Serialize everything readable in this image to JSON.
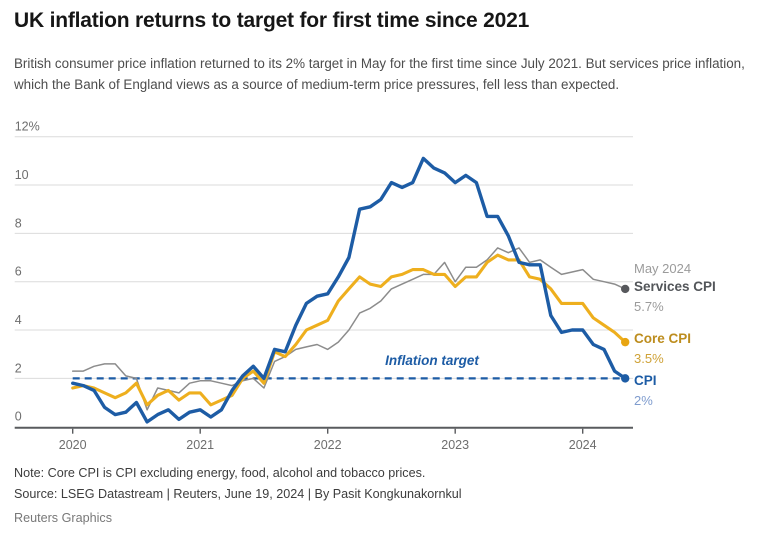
{
  "header": {
    "title": "UK inflation returns to target for first time since 2021",
    "subtitle": "British consumer price inflation returned to its 2% target in May for the first time since July 2021. But services price inflation, which the Bank of England views as a source of medium-term price pressures, fell less than expected."
  },
  "chart_data": {
    "type": "line",
    "x_unit": "month",
    "x_domain": [
      "Jan 2020",
      "May 2024"
    ],
    "ylim": [
      0,
      12
    ],
    "grid": true,
    "y_axis": {
      "ticks": [
        {
          "v": 0,
          "label": "0"
        },
        {
          "v": 2,
          "label": "2"
        },
        {
          "v": 4,
          "label": "4"
        },
        {
          "v": 6,
          "label": "6"
        },
        {
          "v": 8,
          "label": "8"
        },
        {
          "v": 10,
          "label": "10"
        },
        {
          "v": 12,
          "label": "12%"
        }
      ]
    },
    "x_axis": {
      "ticks": [
        {
          "m": 0,
          "label": "2020"
        },
        {
          "m": 12,
          "label": "2021"
        },
        {
          "m": 24,
          "label": "2022"
        },
        {
          "m": 36,
          "label": "2023"
        },
        {
          "m": 48,
          "label": "2024"
        }
      ]
    },
    "target_line": {
      "label": "Inflation target",
      "value": 2,
      "color": "#1d5ca5",
      "style": "dashed"
    },
    "series": [
      {
        "name": "Services CPI",
        "color": "#8c8c8c",
        "dot_color": "#57585c",
        "width": 1.5,
        "end_value_label": "5.7%",
        "values": [
          2.3,
          2.3,
          2.5,
          2.6,
          2.6,
          2.1,
          2.0,
          0.7,
          1.6,
          1.5,
          1.4,
          1.8,
          1.9,
          1.9,
          1.8,
          1.7,
          1.9,
          2.0,
          1.6,
          2.7,
          2.9,
          3.2,
          3.3,
          3.4,
          3.2,
          3.5,
          4.0,
          4.7,
          4.9,
          5.2,
          5.7,
          5.9,
          6.1,
          6.3,
          6.3,
          6.8,
          6.0,
          6.6,
          6.6,
          6.9,
          7.4,
          7.2,
          7.4,
          6.8,
          6.9,
          6.6,
          6.3,
          6.4,
          6.5,
          6.1,
          6.0,
          5.9,
          5.7
        ]
      },
      {
        "name": "Core CPI",
        "color": "#eeaf1e",
        "dot_color": "#e8a512",
        "width": 3.1,
        "end_value_label": "3.5%",
        "values": [
          1.6,
          1.7,
          1.6,
          1.4,
          1.2,
          1.4,
          1.8,
          0.9,
          1.3,
          1.5,
          1.1,
          1.4,
          1.4,
          0.9,
          1.1,
          1.3,
          2.0,
          2.3,
          1.8,
          3.1,
          2.9,
          3.4,
          4.0,
          4.2,
          4.4,
          5.2,
          5.7,
          6.2,
          5.9,
          5.8,
          6.2,
          6.3,
          6.5,
          6.5,
          6.3,
          6.3,
          5.8,
          6.2,
          6.2,
          6.8,
          7.1,
          6.9,
          6.9,
          6.2,
          6.1,
          5.7,
          5.1,
          5.1,
          5.1,
          4.5,
          4.2,
          3.9,
          3.5
        ]
      },
      {
        "name": "CPI",
        "color": "#1d5ca5",
        "dot_color": "#1d5ca5",
        "width": 3.4,
        "end_value_label": "2%",
        "values": [
          1.8,
          1.7,
          1.5,
          0.8,
          0.5,
          0.6,
          1.0,
          0.2,
          0.5,
          0.7,
          0.3,
          0.6,
          0.7,
          0.4,
          0.7,
          1.5,
          2.1,
          2.5,
          2.0,
          3.2,
          3.1,
          4.2,
          5.1,
          5.4,
          5.5,
          6.2,
          7.0,
          9.0,
          9.1,
          9.4,
          10.1,
          9.9,
          10.1,
          11.1,
          10.7,
          10.5,
          10.1,
          10.4,
          10.1,
          8.7,
          8.7,
          7.9,
          6.8,
          6.7,
          6.7,
          4.6,
          3.9,
          4.0,
          4.0,
          3.4,
          3.2,
          2.3,
          2.0
        ]
      }
    ]
  },
  "legend": {
    "date_label": "May 2024",
    "entries": [
      {
        "label": "Services CPI",
        "value": "5.7%"
      },
      {
        "label": "Core CPI",
        "value": "3.5%"
      },
      {
        "label": "CPI",
        "value": "2%"
      }
    ]
  },
  "footer": {
    "note": "Note: Core CPI is CPI excluding energy, food, alcohol and tobacco prices.",
    "source": "Source: LSEG Datastream | Reuters, June 19, 2024 | By Pasit Kongkunakornkul",
    "credit": "Reuters Graphics"
  }
}
